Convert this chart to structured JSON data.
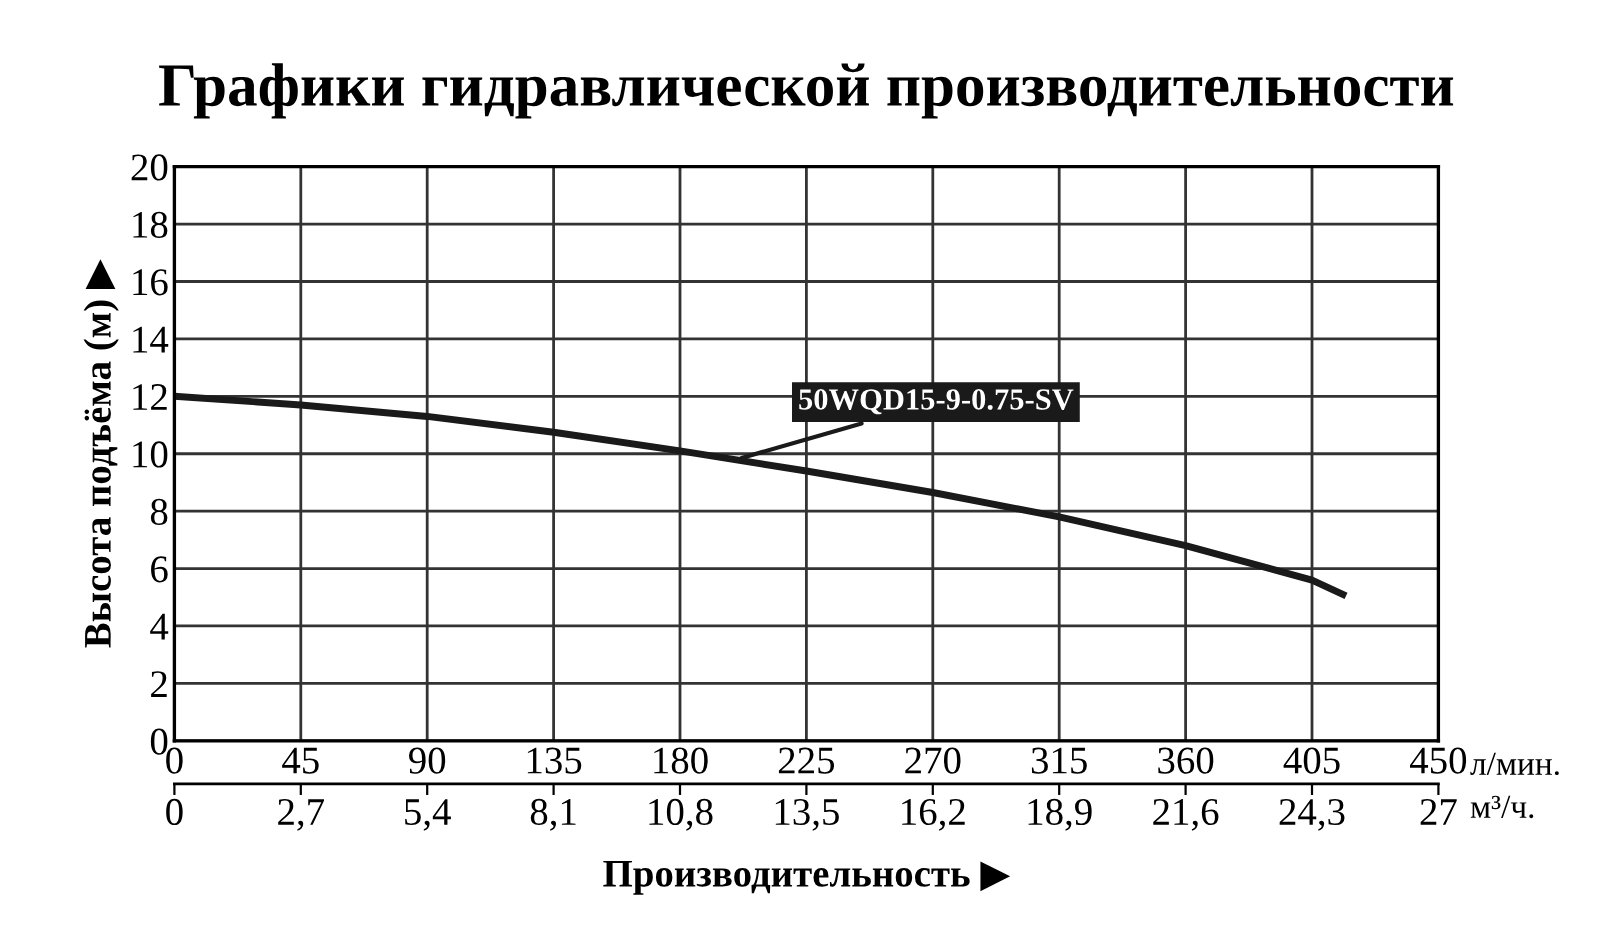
{
  "chart_data": {
    "type": "line",
    "title": "Графики гидравлической производительности",
    "xlabel": "Производительность ▶",
    "ylabel": "Высота подъёма (м) ▶",
    "x": [
      0,
      45,
      90,
      135,
      180,
      225,
      270,
      315,
      360,
      405,
      416
    ],
    "series": [
      {
        "name": "50WQD15-9-0.75-SV",
        "color": "#1a1a1a",
        "values": [
          12,
          11.7,
          11.3,
          10.75,
          10.1,
          9.4,
          8.65,
          7.8,
          6.8,
          5.6,
          5.1
        ]
      }
    ],
    "xlim": [
      0,
      450
    ],
    "xticks": [
      0,
      45,
      90,
      135,
      180,
      225,
      270,
      315,
      360,
      405,
      450
    ],
    "x2lim": [
      0,
      27
    ],
    "x2ticks": [
      0,
      {
        "value": 2.7,
        "label": "2,7"
      },
      {
        "value": 5.4,
        "label": "5,4"
      },
      {
        "value": 8.1,
        "label": "8,1"
      },
      {
        "value": 10.8,
        "label": "10,8"
      },
      {
        "value": 13.5,
        "label": "13,5"
      },
      {
        "value": 16.2,
        "label": "16,2"
      },
      {
        "value": 18.9,
        "label": "18,9"
      },
      {
        "value": 21.6,
        "label": "21,6"
      },
      {
        "value": 24.3,
        "label": "24,3"
      },
      27
    ],
    "ylim": [
      0,
      20
    ],
    "yticks": [
      0,
      2,
      4,
      6,
      8,
      10,
      12,
      14,
      16,
      18,
      20
    ],
    "annotations": [
      "л/мин.",
      "м³/ч."
    ],
    "grid": true,
    "legend": false,
    "marker": "none",
    "line_style": "solid"
  }
}
